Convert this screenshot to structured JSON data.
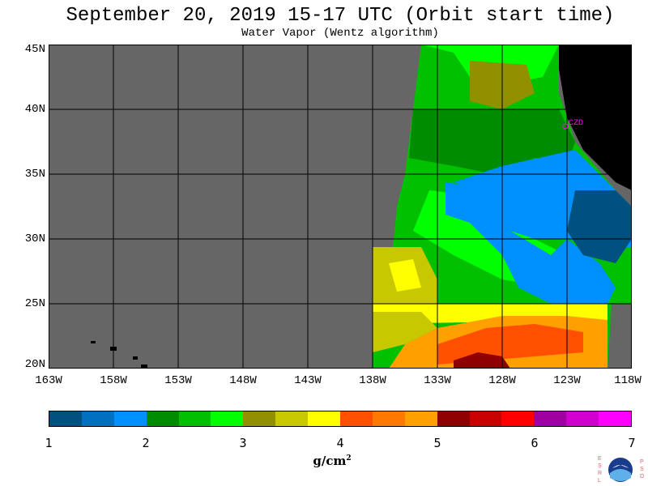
{
  "title": "September 20, 2019  15-17 UTC  (Orbit start time)",
  "subtitle": "Water Vapor (Wentz algorithm)",
  "map": {
    "lat_labels": [
      "45N",
      "40N",
      "35N",
      "30N",
      "25N",
      "20N"
    ],
    "lon_labels": [
      "163W",
      "158W",
      "153W",
      "148W",
      "143W",
      "138W",
      "133W",
      "128W",
      "123W",
      "118W"
    ],
    "station_label": "CZD",
    "colors": {
      "no_data": "#666666",
      "land": "#000000",
      "grid": "#000000",
      "station": "#ff00ff"
    }
  },
  "colorbar": {
    "tick_labels": [
      "1",
      "2",
      "3",
      "4",
      "5",
      "6",
      "7"
    ],
    "unit": "g/cm",
    "unit_sup": "2",
    "colors": [
      "#005080",
      "#0070c0",
      "#0090ff",
      "#008c00",
      "#00c000",
      "#00ff00",
      "#909000",
      "#c8c800",
      "#ffff00",
      "#ff5000",
      "#ff7800",
      "#ffa000",
      "#900000",
      "#c80000",
      "#ff0000",
      "#a000a0",
      "#d000d0",
      "#ff00ff"
    ]
  },
  "logo": {
    "left_letters": "ESRL",
    "right_letters": "PSD"
  }
}
